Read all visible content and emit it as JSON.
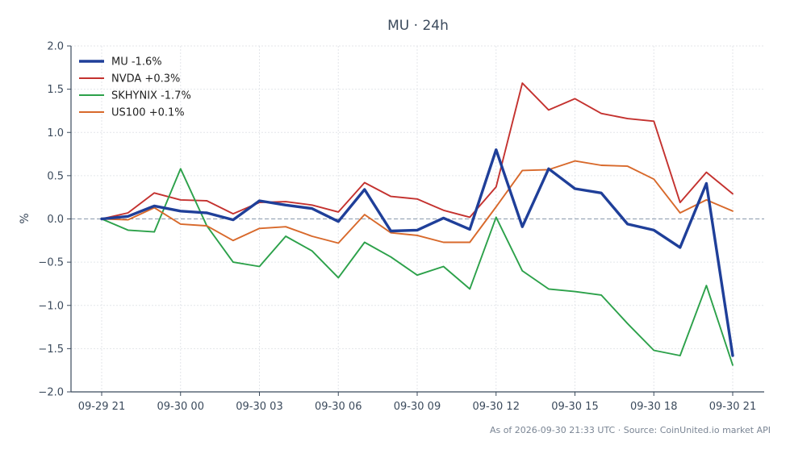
{
  "chart_data": {
    "type": "line",
    "title": "MU · 24h",
    "ylabel": "%",
    "xlabel": "",
    "ylim": [
      -2.0,
      2.0
    ],
    "yticks": [
      2.0,
      1.5,
      1.0,
      0.5,
      0.0,
      -0.5,
      -1.0,
      -1.5,
      -2.0
    ],
    "ytick_labels": [
      "2.0",
      "1.5",
      "1.0",
      "0.5",
      "0.0",
      "−0.5",
      "−1.0",
      "−1.5",
      "−2.0"
    ],
    "x_hours": [
      0,
      1,
      2,
      3,
      4,
      5,
      6,
      7,
      8,
      9,
      10,
      11,
      12,
      13,
      14,
      15,
      16,
      17,
      18,
      19,
      20,
      21,
      22,
      23,
      24
    ],
    "xticks": [
      0,
      3,
      6,
      9,
      12,
      15,
      18,
      21,
      24
    ],
    "xtick_labels": [
      "09-29 21",
      "09-30 00",
      "09-30 03",
      "09-30 06",
      "09-30 09",
      "09-30 12",
      "09-30 15",
      "09-30 18",
      "09-30 21"
    ],
    "grid": true,
    "zero_line": true,
    "legend_position": "top-left",
    "series": [
      {
        "name": "MU -1.6%",
        "color": "#1f3f99",
        "values": [
          0.0,
          0.03,
          0.15,
          0.09,
          0.07,
          -0.01,
          0.21,
          0.16,
          0.12,
          -0.03,
          0.34,
          -0.14,
          -0.13,
          0.01,
          -0.12,
          0.8,
          -0.09,
          0.58,
          0.35,
          0.3,
          -0.06,
          -0.13,
          -0.33,
          0.41,
          -1.58
        ]
      },
      {
        "name": "NVDA +0.3%",
        "color": "#c4322f",
        "values": [
          0.0,
          0.07,
          0.3,
          0.22,
          0.21,
          0.06,
          0.19,
          0.2,
          0.16,
          0.08,
          0.42,
          0.26,
          0.23,
          0.1,
          0.02,
          0.37,
          1.57,
          1.26,
          1.39,
          1.22,
          1.16,
          1.13,
          0.19,
          0.54,
          0.29
        ]
      },
      {
        "name": "SKHYNIX -1.7%",
        "color": "#2ca14a",
        "values": [
          0.0,
          -0.13,
          -0.15,
          0.58,
          -0.08,
          -0.5,
          -0.55,
          -0.2,
          -0.37,
          -0.68,
          -0.27,
          -0.44,
          -0.65,
          -0.55,
          -0.81,
          0.02,
          -0.6,
          -0.81,
          -0.84,
          -0.88,
          -1.21,
          -1.52,
          -1.58,
          -0.77,
          -1.69
        ]
      },
      {
        "name": "US100 +0.1%",
        "color": "#d8692b",
        "values": [
          0.0,
          -0.01,
          0.13,
          -0.06,
          -0.08,
          -0.25,
          -0.11,
          -0.09,
          -0.2,
          -0.28,
          0.05,
          -0.16,
          -0.19,
          -0.27,
          -0.27,
          0.14,
          0.56,
          0.57,
          0.67,
          0.62,
          0.61,
          0.46,
          0.07,
          0.22,
          0.09
        ]
      }
    ]
  },
  "footer": {
    "note": "As of 2026-09-30 21:33 UTC · Source: CoinUnited.io market API"
  },
  "colors": {
    "axis": "#3b4a5c",
    "grid": "#e3e6ea",
    "zero_line": "#8a99ad",
    "text": "#3b4a5c",
    "footer_text": "#7a8594"
  }
}
